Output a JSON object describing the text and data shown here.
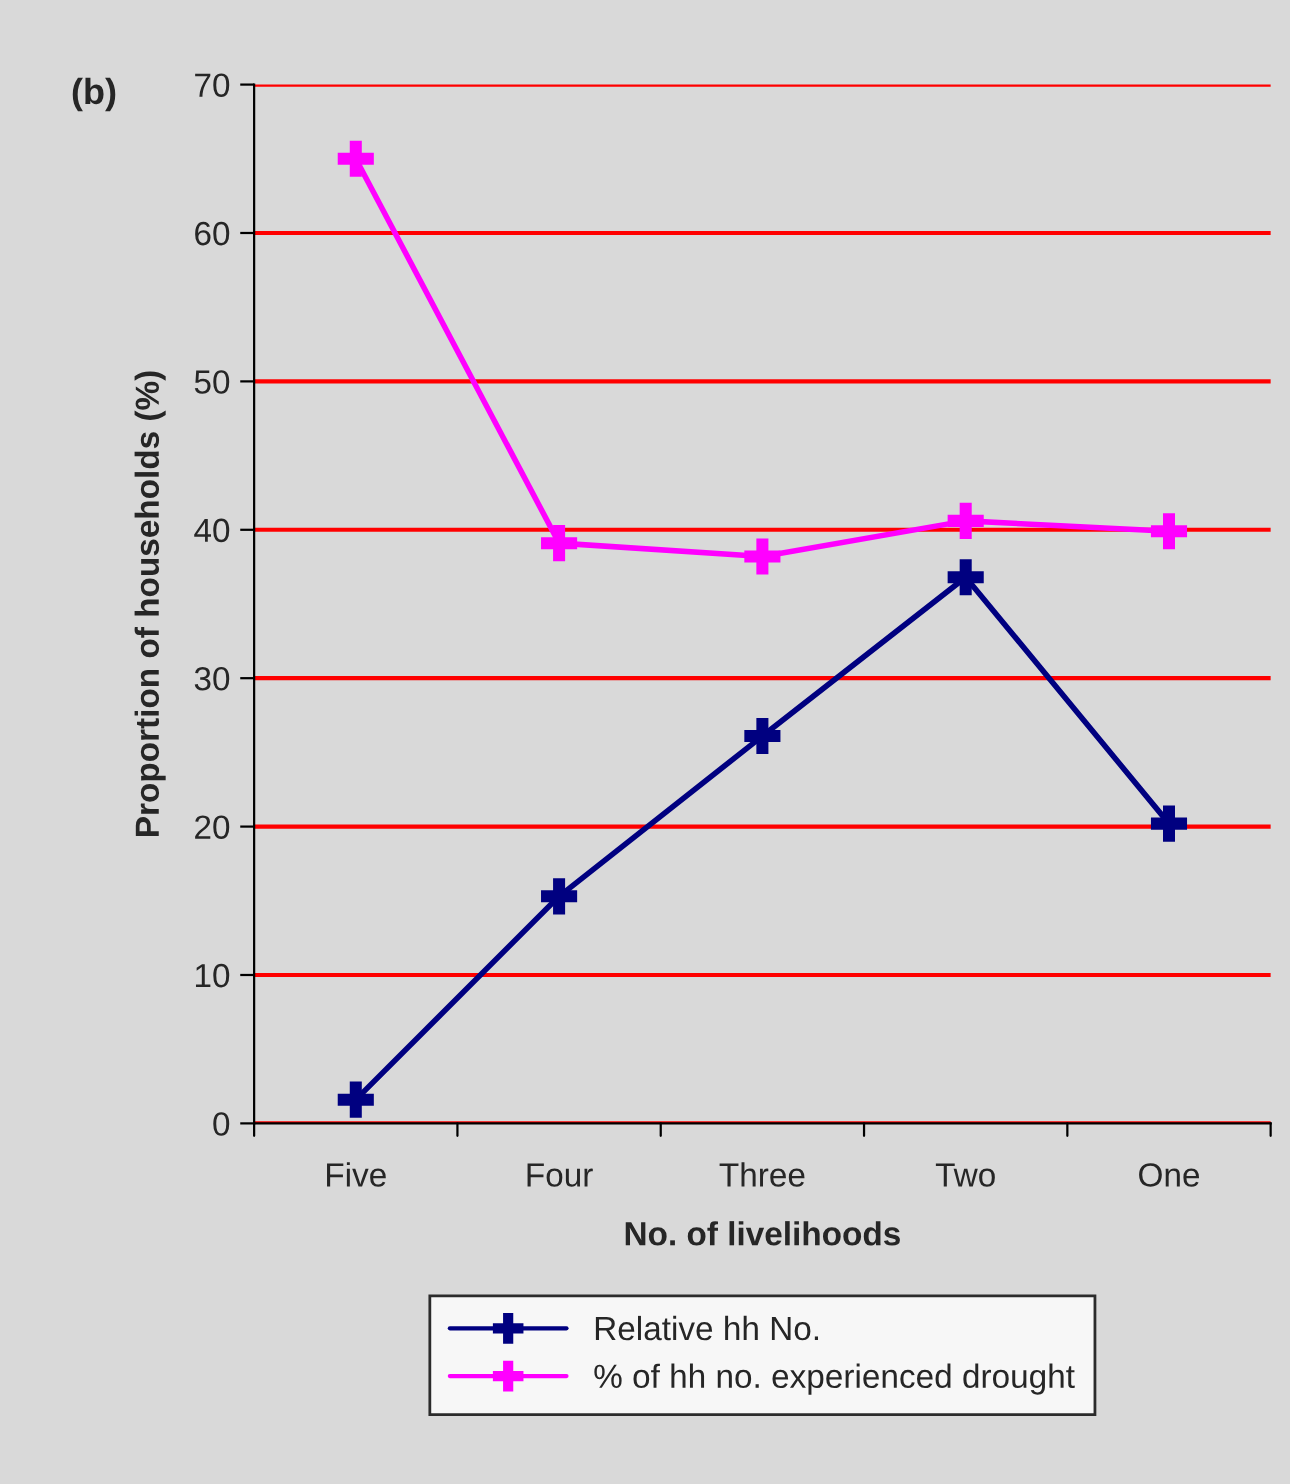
{
  "chart_data": {
    "type": "line",
    "title": "(b)",
    "xlabel": "No. of livelihoods",
    "ylabel": "Proportion of households (%)",
    "categories": [
      "Five",
      "Four",
      "Three",
      "Two",
      "One"
    ],
    "series": [
      {
        "name": "Relative hh No.",
        "color": "#000080",
        "values": [
          1.6,
          15.3,
          26.1,
          36.8,
          20.2
        ]
      },
      {
        "name": "% of hh no. experienced drought",
        "color": "#ff00ff",
        "values": [
          65.0,
          39.1,
          38.2,
          40.6,
          39.9
        ]
      }
    ],
    "ylim": [
      0,
      70
    ],
    "yticks": [
      0,
      10,
      20,
      30,
      40,
      50,
      60,
      70
    ],
    "grid": "y",
    "legend": "bottom",
    "marker": "cross",
    "line_style": "solid"
  }
}
